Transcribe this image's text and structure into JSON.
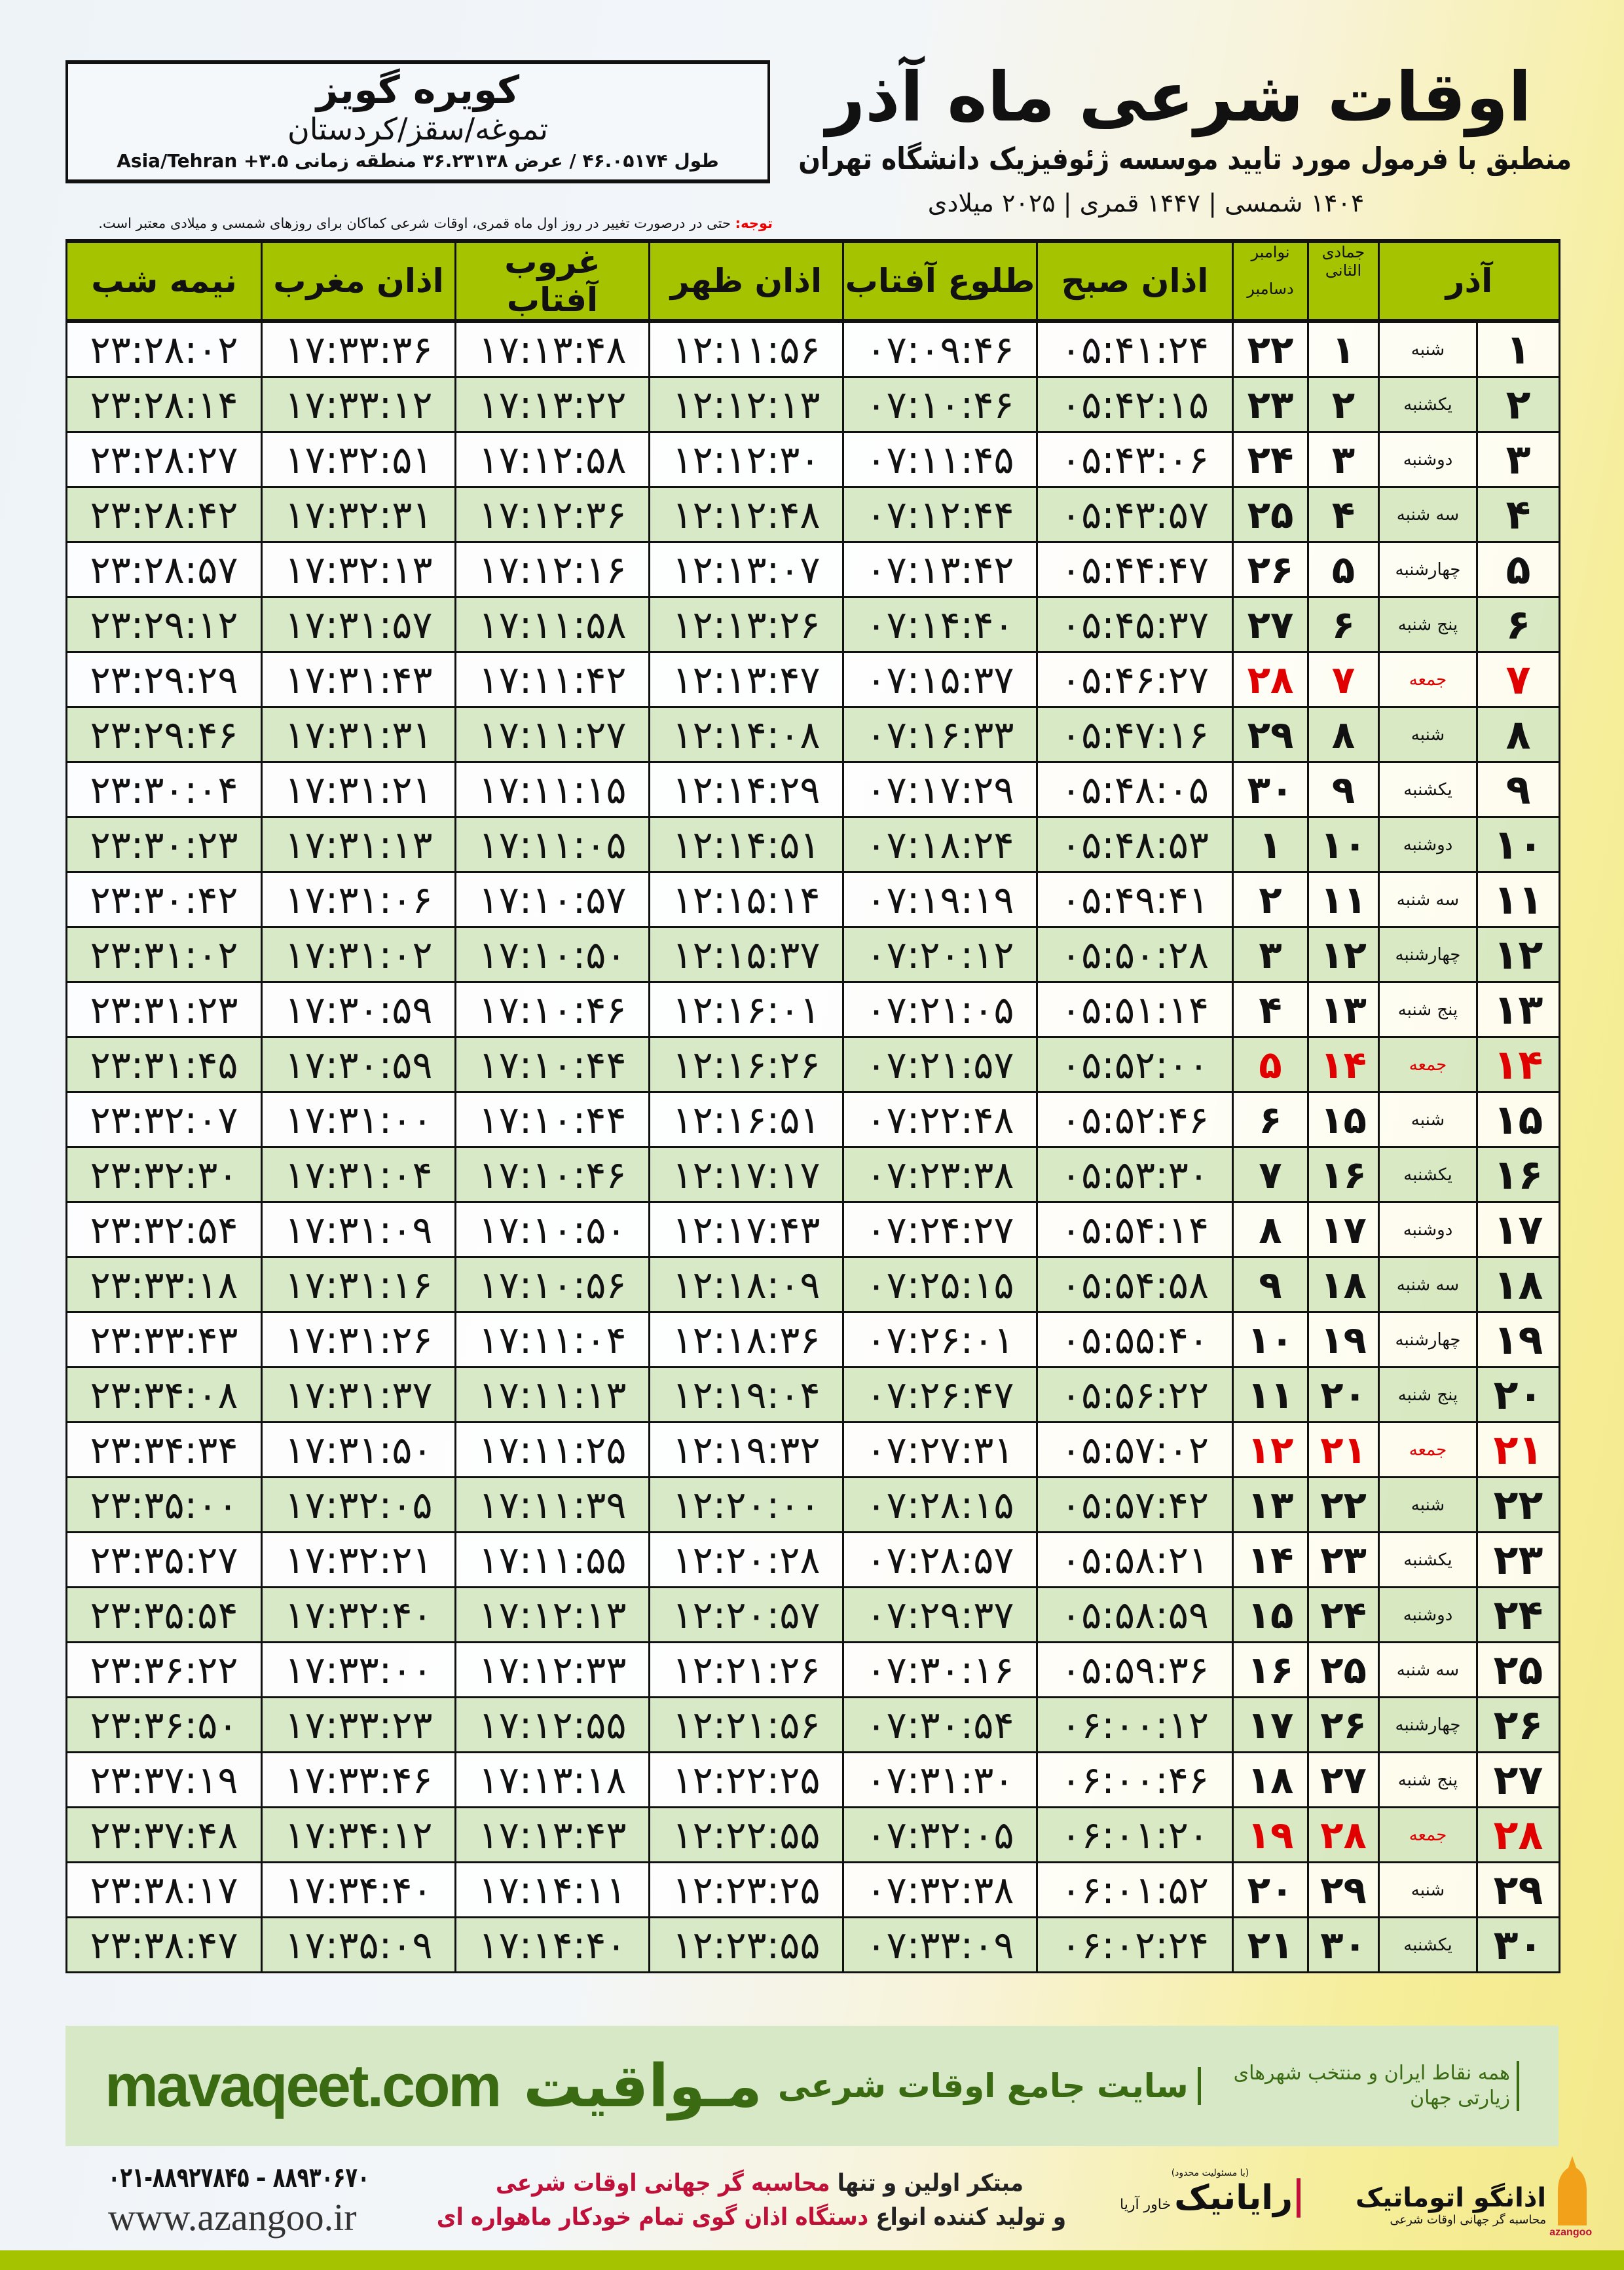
{
  "location": {
    "name": "کویره گویز",
    "region": "تموغه/سقز/کردستان",
    "coords": "طول ۴۶.۰۵۱۷۴ / عرض ۳۶.۲۳۱۳۸ منطقه زمانی ۳.۵+ Asia/Tehran"
  },
  "header": {
    "title": "اوقات شرعی ماه آذر",
    "subtitle": "منطبق با فرمول مورد تایید موسسه ژئوفیزیک دانشگاه تهران",
    "dates": "۱۴۰۴ شمسی | ۱۴۴۷ قمری | ۲۰۲۵ میلادی"
  },
  "note": {
    "label": "توجه:",
    "text": " حتی در درصورت تغییر در روز اول ماه قمری، اوقات شرعی کماکان برای روزهای شمسی و میلادی معتبر است."
  },
  "columns": {
    "month": "آذر",
    "hijri": "جمادی الثانی",
    "greg_top": "نوامبر",
    "greg_bottom": "دسامبر",
    "fajr": "اذان صبح",
    "sunrise": "طلوع آفتاب",
    "dhuhr": "اذان ظهر",
    "sunset": "غروب آفتاب",
    "maghrib": "اذان مغرب",
    "midnight": "نیمه شب"
  },
  "colors": {
    "header_green": "#a6c300",
    "row_green": "#d6e8c4",
    "holiday_red": "#e00000",
    "brand_green": "#3a6b12"
  },
  "rows": [
    {
      "day": "۱",
      "weekday": "شنبه",
      "hijri": "۱",
      "greg": "۲۲",
      "times": [
        "۰۵:۴۱:۲۴",
        "۰۷:۰۹:۴۶",
        "۱۲:۱۱:۵۶",
        "۱۷:۱۳:۴۸",
        "۱۷:۳۳:۳۶",
        "۲۳:۲۸:۰۲"
      ],
      "holiday": false
    },
    {
      "day": "۲",
      "weekday": "یکشنبه",
      "hijri": "۲",
      "greg": "۲۳",
      "times": [
        "۰۵:۴۲:۱۵",
        "۰۷:۱۰:۴۶",
        "۱۲:۱۲:۱۳",
        "۱۷:۱۳:۲۲",
        "۱۷:۳۳:۱۲",
        "۲۳:۲۸:۱۴"
      ],
      "holiday": false
    },
    {
      "day": "۳",
      "weekday": "دوشنبه",
      "hijri": "۳",
      "greg": "۲۴",
      "times": [
        "۰۵:۴۳:۰۶",
        "۰۷:۱۱:۴۵",
        "۱۲:۱۲:۳۰",
        "۱۷:۱۲:۵۸",
        "۱۷:۳۲:۵۱",
        "۲۳:۲۸:۲۷"
      ],
      "holiday": false
    },
    {
      "day": "۴",
      "weekday": "سه شنبه",
      "hijri": "۴",
      "greg": "۲۵",
      "times": [
        "۰۵:۴۳:۵۷",
        "۰۷:۱۲:۴۴",
        "۱۲:۱۲:۴۸",
        "۱۷:۱۲:۳۶",
        "۱۷:۳۲:۳۱",
        "۲۳:۲۸:۴۲"
      ],
      "holiday": false
    },
    {
      "day": "۵",
      "weekday": "چهارشنبه",
      "hijri": "۵",
      "greg": "۲۶",
      "times": [
        "۰۵:۴۴:۴۷",
        "۰۷:۱۳:۴۲",
        "۱۲:۱۳:۰۷",
        "۱۷:۱۲:۱۶",
        "۱۷:۳۲:۱۳",
        "۲۳:۲۸:۵۷"
      ],
      "holiday": false
    },
    {
      "day": "۶",
      "weekday": "پنج شنبه",
      "hijri": "۶",
      "greg": "۲۷",
      "times": [
        "۰۵:۴۵:۳۷",
        "۰۷:۱۴:۴۰",
        "۱۲:۱۳:۲۶",
        "۱۷:۱۱:۵۸",
        "۱۷:۳۱:۵۷",
        "۲۳:۲۹:۱۲"
      ],
      "holiday": false
    },
    {
      "day": "۷",
      "weekday": "جمعه",
      "hijri": "۷",
      "greg": "۲۸",
      "times": [
        "۰۵:۴۶:۲۷",
        "۰۷:۱۵:۳۷",
        "۱۲:۱۳:۴۷",
        "۱۷:۱۱:۴۲",
        "۱۷:۳۱:۴۳",
        "۲۳:۲۹:۲۹"
      ],
      "holiday": true
    },
    {
      "day": "۸",
      "weekday": "شنبه",
      "hijri": "۸",
      "greg": "۲۹",
      "times": [
        "۰۵:۴۷:۱۶",
        "۰۷:۱۶:۳۳",
        "۱۲:۱۴:۰۸",
        "۱۷:۱۱:۲۷",
        "۱۷:۳۱:۳۱",
        "۲۳:۲۹:۴۶"
      ],
      "holiday": false
    },
    {
      "day": "۹",
      "weekday": "یکشنبه",
      "hijri": "۹",
      "greg": "۳۰",
      "times": [
        "۰۵:۴۸:۰۵",
        "۰۷:۱۷:۲۹",
        "۱۲:۱۴:۲۹",
        "۱۷:۱۱:۱۵",
        "۱۷:۳۱:۲۱",
        "۲۳:۳۰:۰۴"
      ],
      "holiday": false
    },
    {
      "day": "۱۰",
      "weekday": "دوشنبه",
      "hijri": "۱۰",
      "greg": "۱",
      "times": [
        "۰۵:۴۸:۵۳",
        "۰۷:۱۸:۲۴",
        "۱۲:۱۴:۵۱",
        "۱۷:۱۱:۰۵",
        "۱۷:۳۱:۱۳",
        "۲۳:۳۰:۲۳"
      ],
      "holiday": false
    },
    {
      "day": "۱۱",
      "weekday": "سه شنبه",
      "hijri": "۱۱",
      "greg": "۲",
      "times": [
        "۰۵:۴۹:۴۱",
        "۰۷:۱۹:۱۹",
        "۱۲:۱۵:۱۴",
        "۱۷:۱۰:۵۷",
        "۱۷:۳۱:۰۶",
        "۲۳:۳۰:۴۲"
      ],
      "holiday": false
    },
    {
      "day": "۱۲",
      "weekday": "چهارشنبه",
      "hijri": "۱۲",
      "greg": "۳",
      "times": [
        "۰۵:۵۰:۲۸",
        "۰۷:۲۰:۱۲",
        "۱۲:۱۵:۳۷",
        "۱۷:۱۰:۵۰",
        "۱۷:۳۱:۰۲",
        "۲۳:۳۱:۰۲"
      ],
      "holiday": false
    },
    {
      "day": "۱۳",
      "weekday": "پنج شنبه",
      "hijri": "۱۳",
      "greg": "۴",
      "times": [
        "۰۵:۵۱:۱۴",
        "۰۷:۲۱:۰۵",
        "۱۲:۱۶:۰۱",
        "۱۷:۱۰:۴۶",
        "۱۷:۳۰:۵۹",
        "۲۳:۳۱:۲۳"
      ],
      "holiday": false
    },
    {
      "day": "۱۴",
      "weekday": "جمعه",
      "hijri": "۱۴",
      "greg": "۵",
      "times": [
        "۰۵:۵۲:۰۰",
        "۰۷:۲۱:۵۷",
        "۱۲:۱۶:۲۶",
        "۱۷:۱۰:۴۴",
        "۱۷:۳۰:۵۹",
        "۲۳:۳۱:۴۵"
      ],
      "holiday": true
    },
    {
      "day": "۱۵",
      "weekday": "شنبه",
      "hijri": "۱۵",
      "greg": "۶",
      "times": [
        "۰۵:۵۲:۴۶",
        "۰۷:۲۲:۴۸",
        "۱۲:۱۶:۵۱",
        "۱۷:۱۰:۴۴",
        "۱۷:۳۱:۰۰",
        "۲۳:۳۲:۰۷"
      ],
      "holiday": false
    },
    {
      "day": "۱۶",
      "weekday": "یکشنبه",
      "hijri": "۱۶",
      "greg": "۷",
      "times": [
        "۰۵:۵۳:۳۰",
        "۰۷:۲۳:۳۸",
        "۱۲:۱۷:۱۷",
        "۱۷:۱۰:۴۶",
        "۱۷:۳۱:۰۴",
        "۲۳:۳۲:۳۰"
      ],
      "holiday": false
    },
    {
      "day": "۱۷",
      "weekday": "دوشنبه",
      "hijri": "۱۷",
      "greg": "۸",
      "times": [
        "۰۵:۵۴:۱۴",
        "۰۷:۲۴:۲۷",
        "۱۲:۱۷:۴۳",
        "۱۷:۱۰:۵۰",
        "۱۷:۳۱:۰۹",
        "۲۳:۳۲:۵۴"
      ],
      "holiday": false
    },
    {
      "day": "۱۸",
      "weekday": "سه شنبه",
      "hijri": "۱۸",
      "greg": "۹",
      "times": [
        "۰۵:۵۴:۵۸",
        "۰۷:۲۵:۱۵",
        "۱۲:۱۸:۰۹",
        "۱۷:۱۰:۵۶",
        "۱۷:۳۱:۱۶",
        "۲۳:۳۳:۱۸"
      ],
      "holiday": false
    },
    {
      "day": "۱۹",
      "weekday": "چهارشنبه",
      "hijri": "۱۹",
      "greg": "۱۰",
      "times": [
        "۰۵:۵۵:۴۰",
        "۰۷:۲۶:۰۱",
        "۱۲:۱۸:۳۶",
        "۱۷:۱۱:۰۴",
        "۱۷:۳۱:۲۶",
        "۲۳:۳۳:۴۳"
      ],
      "holiday": false
    },
    {
      "day": "۲۰",
      "weekday": "پنج شنبه",
      "hijri": "۲۰",
      "greg": "۱۱",
      "times": [
        "۰۵:۵۶:۲۲",
        "۰۷:۲۶:۴۷",
        "۱۲:۱۹:۰۴",
        "۱۷:۱۱:۱۳",
        "۱۷:۳۱:۳۷",
        "۲۳:۳۴:۰۸"
      ],
      "holiday": false
    },
    {
      "day": "۲۱",
      "weekday": "جمعه",
      "hijri": "۲۱",
      "greg": "۱۲",
      "times": [
        "۰۵:۵۷:۰۲",
        "۰۷:۲۷:۳۱",
        "۱۲:۱۹:۳۲",
        "۱۷:۱۱:۲۵",
        "۱۷:۳۱:۵۰",
        "۲۳:۳۴:۳۴"
      ],
      "holiday": true
    },
    {
      "day": "۲۲",
      "weekday": "شنبه",
      "hijri": "۲۲",
      "greg": "۱۳",
      "times": [
        "۰۵:۵۷:۴۲",
        "۰۷:۲۸:۱۵",
        "۱۲:۲۰:۰۰",
        "۱۷:۱۱:۳۹",
        "۱۷:۳۲:۰۵",
        "۲۳:۳۵:۰۰"
      ],
      "holiday": false
    },
    {
      "day": "۲۳",
      "weekday": "یکشنبه",
      "hijri": "۲۳",
      "greg": "۱۴",
      "times": [
        "۰۵:۵۸:۲۱",
        "۰۷:۲۸:۵۷",
        "۱۲:۲۰:۲۸",
        "۱۷:۱۱:۵۵",
        "۱۷:۳۲:۲۱",
        "۲۳:۳۵:۲۷"
      ],
      "holiday": false
    },
    {
      "day": "۲۴",
      "weekday": "دوشنبه",
      "hijri": "۲۴",
      "greg": "۱۵",
      "times": [
        "۰۵:۵۸:۵۹",
        "۰۷:۲۹:۳۷",
        "۱۲:۲۰:۵۷",
        "۱۷:۱۲:۱۳",
        "۱۷:۳۲:۴۰",
        "۲۳:۳۵:۵۴"
      ],
      "holiday": false
    },
    {
      "day": "۲۵",
      "weekday": "سه شنبه",
      "hijri": "۲۵",
      "greg": "۱۶",
      "times": [
        "۰۵:۵۹:۳۶",
        "۰۷:۳۰:۱۶",
        "۱۲:۲۱:۲۶",
        "۱۷:۱۲:۳۳",
        "۱۷:۳۳:۰۰",
        "۲۳:۳۶:۲۲"
      ],
      "holiday": false
    },
    {
      "day": "۲۶",
      "weekday": "چهارشنبه",
      "hijri": "۲۶",
      "greg": "۱۷",
      "times": [
        "۰۶:۰۰:۱۲",
        "۰۷:۳۰:۵۴",
        "۱۲:۲۱:۵۶",
        "۱۷:۱۲:۵۵",
        "۱۷:۳۳:۲۳",
        "۲۳:۳۶:۵۰"
      ],
      "holiday": false
    },
    {
      "day": "۲۷",
      "weekday": "پنج شنبه",
      "hijri": "۲۷",
      "greg": "۱۸",
      "times": [
        "۰۶:۰۰:۴۶",
        "۰۷:۳۱:۳۰",
        "۱۲:۲۲:۲۵",
        "۱۷:۱۳:۱۸",
        "۱۷:۳۳:۴۶",
        "۲۳:۳۷:۱۹"
      ],
      "holiday": false
    },
    {
      "day": "۲۸",
      "weekday": "جمعه",
      "hijri": "۲۸",
      "greg": "۱۹",
      "times": [
        "۰۶:۰۱:۲۰",
        "۰۷:۳۲:۰۵",
        "۱۲:۲۲:۵۵",
        "۱۷:۱۳:۴۳",
        "۱۷:۳۴:۱۲",
        "۲۳:۳۷:۴۸"
      ],
      "holiday": true
    },
    {
      "day": "۲۹",
      "weekday": "شنبه",
      "hijri": "۲۹",
      "greg": "۲۰",
      "times": [
        "۰۶:۰۱:۵۲",
        "۰۷:۳۲:۳۸",
        "۱۲:۲۳:۲۵",
        "۱۷:۱۴:۱۱",
        "۱۷:۳۴:۴۰",
        "۲۳:۳۸:۱۷"
      ],
      "holiday": false
    },
    {
      "day": "۳۰",
      "weekday": "یکشنبه",
      "hijri": "۳۰",
      "greg": "۲۱",
      "times": [
        "۰۶:۰۲:۲۴",
        "۰۷:۳۳:۰۹",
        "۱۲:۲۳:۵۵",
        "۱۷:۱۴:۴۰",
        "۱۷:۳۵:۰۹",
        "۲۳:۳۸:۴۷"
      ],
      "holiday": false
    }
  ],
  "footer": {
    "brand": "مـواقیت",
    "tagline": "سایت جامع اوقات شرعی",
    "subtag": "همه نقاط ایران و منتخب شهرهای زیارتی جهان",
    "url": "mavaqeet.com",
    "phone": "۰۲۱-۸۸۹۲۷۸۴۵ – ۸۸۹۳۰۶۷۰",
    "az_url": "www.azangoo.ir",
    "promo1a": "مبتکر اولین و تنها ",
    "promo1b": "محاسبه گر جهانی اوقات شرعی",
    "promo2a": "و تولید کننده انواع ",
    "promo2b": "دستگاه اذان گوی تمام خودکار ماهواره ای",
    "raynik_small": "(با مسئولیت محدود)",
    "raynik": "رایانیک",
    "raynik_side": "خاور آریا",
    "az_brand": "اذانگو اتوماتیک",
    "az_sub": "محاسبه گر جهانی اوقات شرعی",
    "az_latin": "azangoo"
  }
}
